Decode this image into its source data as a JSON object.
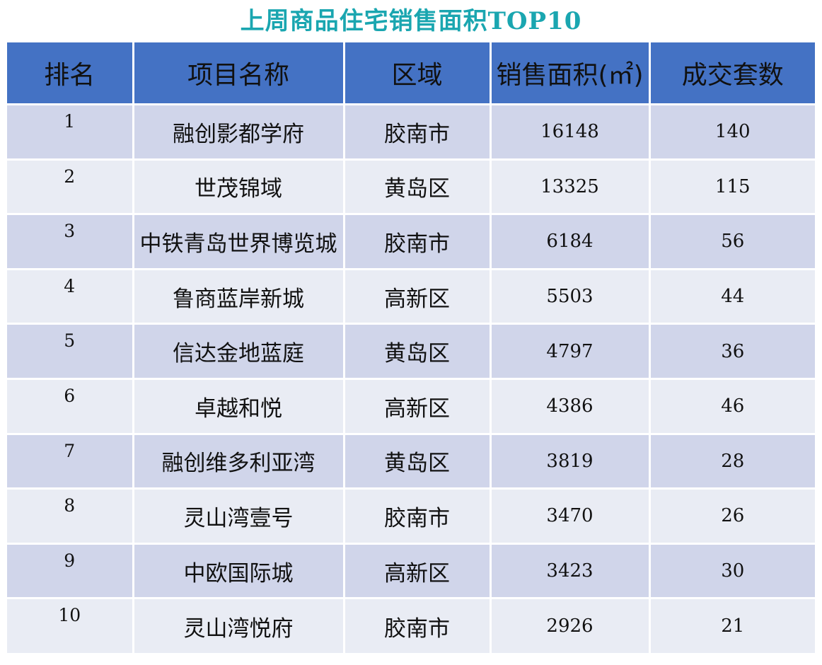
{
  "title": "上周商品住宅销售面积TOP10",
  "headers": {
    "rank": "排名",
    "project": "项目名称",
    "district": "区域",
    "area": "销售面积(㎡)",
    "units": "成交套数"
  },
  "rows": [
    {
      "rank": "1",
      "project": "融创影都学府",
      "district": "胶南市",
      "area": "16148",
      "units": "140"
    },
    {
      "rank": "2",
      "project": "世茂锦域",
      "district": "黄岛区",
      "area": "13325",
      "units": "115"
    },
    {
      "rank": "3",
      "project": "中铁青岛世界博览城",
      "district": "胶南市",
      "area": "6184",
      "units": "56"
    },
    {
      "rank": "4",
      "project": "鲁商蓝岸新城",
      "district": "高新区",
      "area": "5503",
      "units": "44"
    },
    {
      "rank": "5",
      "project": "信达金地蓝庭",
      "district": "黄岛区",
      "area": "4797",
      "units": "36"
    },
    {
      "rank": "6",
      "project": "卓越和悦",
      "district": "高新区",
      "area": "4386",
      "units": "46"
    },
    {
      "rank": "7",
      "project": "融创维多利亚湾",
      "district": "黄岛区",
      "area": "3819",
      "units": "28"
    },
    {
      "rank": "8",
      "project": "灵山湾壹号",
      "district": "胶南市",
      "area": "3470",
      "units": "26"
    },
    {
      "rank": "9",
      "project": "中欧国际城",
      "district": "高新区",
      "area": "3423",
      "units": "30"
    },
    {
      "rank": "10",
      "project": "灵山湾悦府",
      "district": "胶南市",
      "area": "2926",
      "units": "21"
    }
  ],
  "colors": {
    "title": "#1aa6b0",
    "header_bg": "#4472c4",
    "row_odd": "#d0d5ea",
    "row_even": "#e9ecf4"
  }
}
